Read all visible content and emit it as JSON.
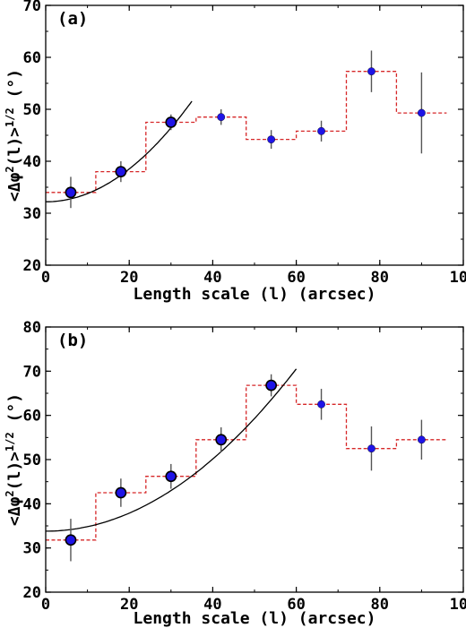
{
  "colors": {
    "marker_fill": "#1f14e6",
    "marker_edge": "#000000",
    "step_line": "#d62728",
    "fit_line": "#000000",
    "errorbar": "#555555"
  },
  "chart_data": [
    {
      "type": "scatter",
      "panel_label": "(a)",
      "xlabel": "Length scale (l) (arcsec)",
      "ylabel": "<Δφ²(l)>^1/2 (°)",
      "ylabel_parts": {
        "open": "<Δφ",
        "sup1": "2",
        "mid": "(l)>",
        "sup2": "1/2",
        "close": " (°)"
      },
      "xlim": [
        0,
        100
      ],
      "ylim": [
        20,
        70
      ],
      "xticks": [
        "0",
        "20",
        "40",
        "60",
        "80",
        "100"
      ],
      "yticks": [
        "20",
        "30",
        "40",
        "50",
        "60",
        "70"
      ],
      "grid": false,
      "series": [
        {
          "marker": "circle",
          "points": [
            {
              "x": 6,
              "y": 34.0,
              "yerr": 3.0,
              "fit": true
            },
            {
              "x": 18,
              "y": 38.0,
              "yerr": 2.0,
              "fit": true
            },
            {
              "x": 30,
              "y": 47.5,
              "yerr": 1.5,
              "fit": true
            },
            {
              "x": 42,
              "y": 48.5,
              "yerr": 1.5,
              "fit": false
            },
            {
              "x": 54,
              "y": 44.2,
              "yerr": 1.8,
              "fit": false
            },
            {
              "x": 66,
              "y": 45.8,
              "yerr": 2.0,
              "fit": false
            },
            {
              "x": 78,
              "y": 57.3,
              "yerr": 4.0,
              "fit": false
            },
            {
              "x": 90,
              "y": 49.3,
              "yerr": 7.8,
              "fit": false
            }
          ]
        }
      ],
      "step_histogram": {
        "bin_edges": [
          0,
          12,
          24,
          36,
          48,
          60,
          72,
          84,
          96
        ],
        "values": [
          34.0,
          38.0,
          47.5,
          48.5,
          44.2,
          45.8,
          57.3,
          49.3
        ]
      },
      "fit_curve": {
        "x_range": [
          0,
          35
        ],
        "intercept": 32.2,
        "curvature": 0.0158
      }
    },
    {
      "type": "scatter",
      "panel_label": "(b)",
      "xlabel": "Length scale (l) (arcsec)",
      "ylabel": "<Δφ²(l)>^1/2 (°)",
      "ylabel_parts": {
        "open": "<Δφ",
        "sup1": "2",
        "mid": "(l)>",
        "sup2": "1/2",
        "close": " (°)"
      },
      "xlim": [
        0,
        100
      ],
      "ylim": [
        20,
        80
      ],
      "xticks": [
        "0",
        "20",
        "40",
        "60",
        "80",
        "100"
      ],
      "yticks": [
        "20",
        "30",
        "40",
        "50",
        "60",
        "70",
        "80"
      ],
      "grid": false,
      "series": [
        {
          "marker": "circle",
          "points": [
            {
              "x": 6,
              "y": 31.8,
              "yerr": 4.8,
              "fit": true
            },
            {
              "x": 18,
              "y": 42.5,
              "yerr": 3.2,
              "fit": true
            },
            {
              "x": 30,
              "y": 46.2,
              "yerr": 2.8,
              "fit": true
            },
            {
              "x": 42,
              "y": 54.5,
              "yerr": 2.8,
              "fit": true
            },
            {
              "x": 54,
              "y": 66.8,
              "yerr": 2.5,
              "fit": true
            },
            {
              "x": 66,
              "y": 62.5,
              "yerr": 3.5,
              "fit": false
            },
            {
              "x": 78,
              "y": 52.5,
              "yerr": 5.0,
              "fit": false
            },
            {
              "x": 90,
              "y": 54.5,
              "yerr": 4.5,
              "fit": false
            }
          ]
        }
      ],
      "step_histogram": {
        "bin_edges": [
          0,
          12,
          24,
          36,
          48,
          60,
          72,
          84,
          96
        ],
        "values": [
          31.8,
          42.5,
          46.2,
          54.5,
          66.8,
          62.5,
          52.5,
          54.5
        ]
      },
      "fit_curve": {
        "x_range": [
          0,
          60
        ],
        "intercept": 33.8,
        "curvature": 0.0102
      }
    }
  ]
}
